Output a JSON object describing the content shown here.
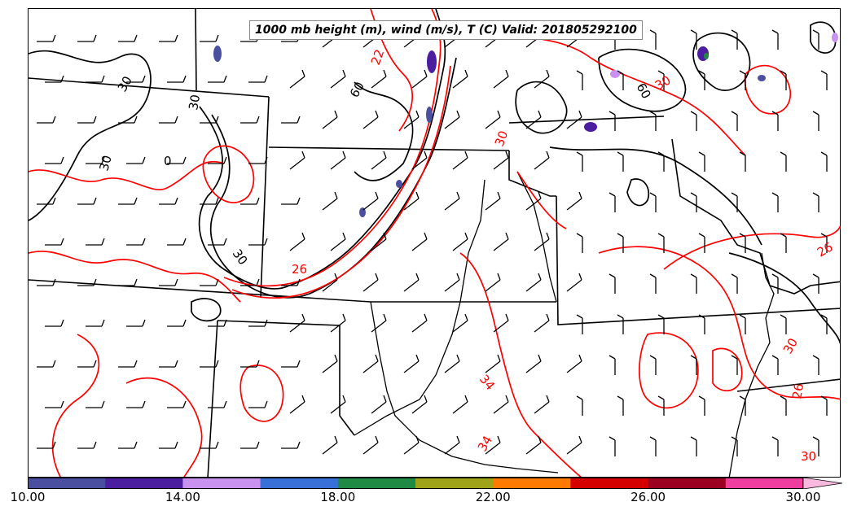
{
  "title": "1000 mb height (m), wind (m/s), T (C) Valid: 201805292100",
  "colorbar": {
    "colors": [
      "#4a4fa0",
      "#4b1ea0",
      "#c992ef",
      "#3870d8",
      "#1f8a43",
      "#9ea317",
      "#ff7a00",
      "#d40000",
      "#9c0020",
      "#ef3ea0"
    ],
    "extend_color": "#f9b8dd",
    "ticks": [
      "10.00",
      "14.00",
      "18.00",
      "22.00",
      "26.00",
      "30.00"
    ]
  },
  "contour_labels": {
    "temperature": [
      "22",
      "26",
      "30",
      "30",
      "34",
      "26",
      "30",
      "30",
      "34",
      "26"
    ],
    "height": [
      "60",
      "60",
      "30",
      "30",
      "30",
      "30",
      "0"
    ]
  },
  "colors": {
    "temperature_contour": "#ff0000",
    "height_contour": "#000000",
    "borders": "#000000"
  }
}
